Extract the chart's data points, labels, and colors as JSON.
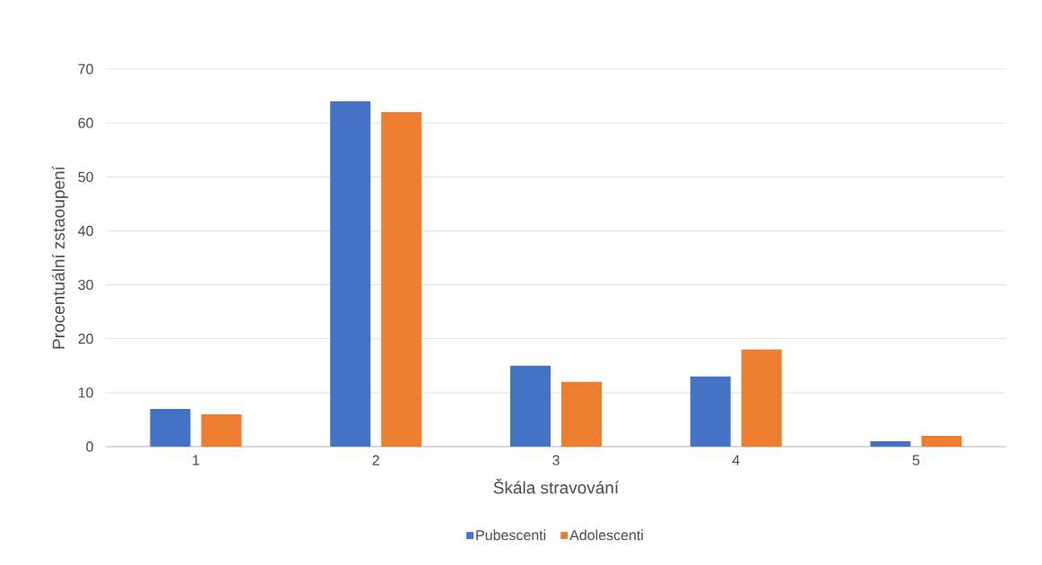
{
  "chart_data": {
    "type": "bar",
    "xlabel": "Škála stravování",
    "ylabel": "Procentuální zstaoupení",
    "categories": [
      "1",
      "2",
      "3",
      "4",
      "5"
    ],
    "series": [
      {
        "name": "Pubescenti",
        "color": "#4472c4",
        "values": [
          7,
          64,
          15,
          13,
          1
        ]
      },
      {
        "name": "Adolescenti",
        "color": "#ed7d31",
        "values": [
          6,
          62,
          12,
          18,
          2
        ]
      }
    ],
    "ylim": [
      0,
      70
    ],
    "yticks": [
      0,
      10,
      20,
      30,
      40,
      50,
      60,
      70
    ],
    "grid": "y",
    "legend": "bottom"
  }
}
